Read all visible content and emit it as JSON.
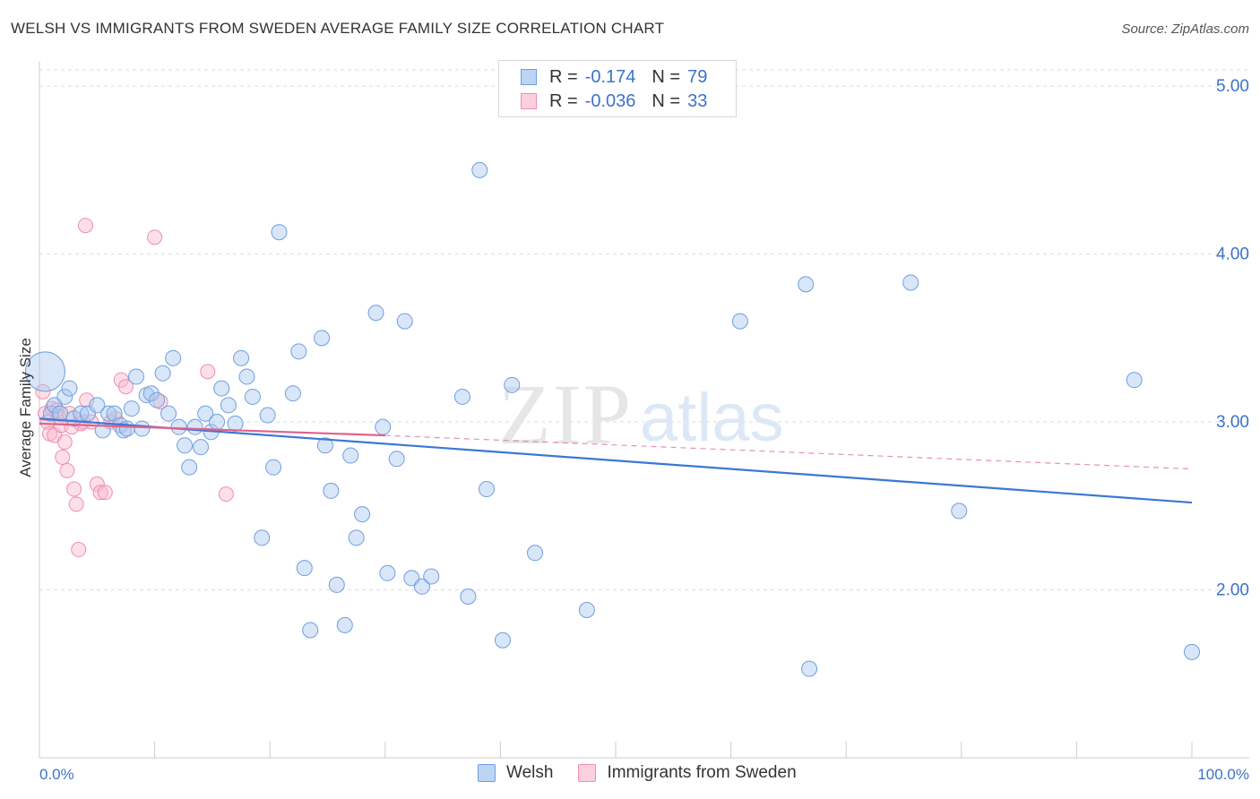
{
  "header": {
    "title": "WELSH VS IMMIGRANTS FROM SWEDEN AVERAGE FAMILY SIZE CORRELATION CHART",
    "source": "Source: ZipAtlas.com"
  },
  "watermark": {
    "zip": "ZIP",
    "atlas": "atlas"
  },
  "legend_top": {
    "welsh": {
      "r_label": "R =",
      "r_value": "-0.174",
      "n_label": "N =",
      "n_value": "79"
    },
    "sweden": {
      "r_label": "R =",
      "r_value": "-0.036",
      "n_label": "N =",
      "n_value": "33"
    }
  },
  "legend_bottom": {
    "welsh": "Welsh",
    "sweden": "Immigrants from Sweden"
  },
  "colors": {
    "welsh_fill": "#a8c8f0",
    "welsh_stroke": "#6f9ee0",
    "welsh_line": "#3a78d4",
    "sweden_fill": "#f8b8cc",
    "sweden_stroke": "#ee8fae",
    "sweden_line": "#e0608a",
    "axis_label": "#3b73c8",
    "grid": "#dddddd"
  },
  "chart_data": {
    "type": "scatter",
    "title": "WELSH VS IMMIGRANTS FROM SWEDEN AVERAGE FAMILY SIZE CORRELATION CHART",
    "xlabel": "",
    "ylabel": "Average Family Size",
    "xlim": [
      0,
      100
    ],
    "ylim": [
      1.0,
      5.15
    ],
    "x_tick_labels": [
      "0.0%",
      "100.0%"
    ],
    "y_ticks": [
      2.0,
      3.0,
      4.0,
      5.0
    ],
    "y_tick_labels": [
      "2.00",
      "3.00",
      "4.00",
      "5.00"
    ],
    "grid": true,
    "series": [
      {
        "name": "Welsh",
        "points": [
          [
            0.5,
            3.3
          ],
          [
            1.0,
            3.05
          ],
          [
            1.3,
            3.1
          ],
          [
            1.8,
            3.05
          ],
          [
            2.2,
            3.15
          ],
          [
            2.6,
            3.2
          ],
          [
            3.0,
            3.02
          ],
          [
            3.6,
            3.05
          ],
          [
            4.2,
            3.05
          ],
          [
            5.0,
            3.1
          ],
          [
            5.5,
            2.95
          ],
          [
            6.0,
            3.05
          ],
          [
            6.5,
            3.05
          ],
          [
            7.0,
            2.98
          ],
          [
            7.3,
            2.95
          ],
          [
            7.6,
            2.96
          ],
          [
            8.0,
            3.08
          ],
          [
            8.4,
            3.27
          ],
          [
            8.9,
            2.96
          ],
          [
            9.3,
            3.16
          ],
          [
            9.7,
            3.17
          ],
          [
            10.2,
            3.13
          ],
          [
            10.7,
            3.29
          ],
          [
            11.2,
            3.05
          ],
          [
            11.6,
            3.38
          ],
          [
            12.1,
            2.97
          ],
          [
            12.6,
            2.86
          ],
          [
            13.0,
            2.73
          ],
          [
            13.5,
            2.97
          ],
          [
            14.0,
            2.85
          ],
          [
            14.4,
            3.05
          ],
          [
            14.9,
            2.94
          ],
          [
            15.4,
            3.0
          ],
          [
            15.8,
            3.2
          ],
          [
            16.4,
            3.1
          ],
          [
            17.0,
            2.99
          ],
          [
            17.5,
            3.38
          ],
          [
            18.0,
            3.27
          ],
          [
            18.5,
            3.15
          ],
          [
            19.3,
            2.31
          ],
          [
            19.8,
            3.04
          ],
          [
            20.3,
            2.73
          ],
          [
            20.8,
            4.13
          ],
          [
            22.0,
            3.17
          ],
          [
            22.5,
            3.42
          ],
          [
            23.0,
            2.13
          ],
          [
            23.5,
            1.76
          ],
          [
            24.5,
            3.5
          ],
          [
            24.8,
            2.86
          ],
          [
            25.3,
            2.59
          ],
          [
            25.8,
            2.03
          ],
          [
            26.5,
            1.79
          ],
          [
            27.0,
            2.8
          ],
          [
            27.5,
            2.31
          ],
          [
            28.0,
            2.45
          ],
          [
            29.2,
            3.65
          ],
          [
            29.8,
            2.97
          ],
          [
            30.2,
            2.1
          ],
          [
            31.0,
            2.78
          ],
          [
            31.7,
            3.6
          ],
          [
            32.3,
            2.07
          ],
          [
            33.2,
            2.02
          ],
          [
            34.0,
            2.08
          ],
          [
            36.7,
            3.15
          ],
          [
            37.2,
            1.96
          ],
          [
            38.2,
            4.5
          ],
          [
            38.8,
            2.6
          ],
          [
            40.2,
            1.7
          ],
          [
            41.0,
            3.22
          ],
          [
            43.0,
            2.22
          ],
          [
            47.5,
            1.88
          ],
          [
            60.8,
            3.6
          ],
          [
            66.5,
            3.82
          ],
          [
            66.8,
            1.53
          ],
          [
            75.6,
            3.83
          ],
          [
            79.8,
            2.47
          ],
          [
            95.0,
            3.25
          ],
          [
            100.0,
            1.63
          ],
          [
            47.5,
            5.01
          ]
        ],
        "trend": {
          "x": [
            0,
            100
          ],
          "y": [
            3.02,
            2.52
          ]
        }
      },
      {
        "name": "Immigrants from Sweden",
        "points": [
          [
            0.3,
            3.18
          ],
          [
            0.5,
            3.05
          ],
          [
            0.7,
            3.0
          ],
          [
            0.9,
            2.93
          ],
          [
            1.1,
            3.08
          ],
          [
            1.3,
            2.92
          ],
          [
            1.5,
            3.07
          ],
          [
            1.7,
            3.03
          ],
          [
            1.9,
            2.98
          ],
          [
            2.0,
            2.79
          ],
          [
            2.2,
            2.88
          ],
          [
            2.4,
            2.71
          ],
          [
            2.6,
            3.05
          ],
          [
            2.8,
            2.97
          ],
          [
            3.0,
            2.6
          ],
          [
            3.2,
            2.51
          ],
          [
            3.4,
            2.24
          ],
          [
            3.6,
            2.99
          ],
          [
            3.8,
            3.0
          ],
          [
            4.1,
            3.13
          ],
          [
            4.5,
            3.0
          ],
          [
            5.0,
            2.63
          ],
          [
            5.3,
            2.58
          ],
          [
            5.7,
            2.58
          ],
          [
            6.2,
            3.0
          ],
          [
            6.6,
            3.02
          ],
          [
            4.0,
            4.17
          ],
          [
            7.1,
            3.25
          ],
          [
            7.5,
            3.21
          ],
          [
            10.0,
            4.1
          ],
          [
            10.5,
            3.12
          ],
          [
            14.6,
            3.3
          ],
          [
            16.2,
            2.57
          ]
        ],
        "trend": {
          "x": [
            0,
            30
          ],
          "y": [
            2.99,
            2.92
          ]
        },
        "trend_dashed": {
          "x": [
            30,
            100
          ],
          "y": [
            2.92,
            2.72
          ]
        }
      }
    ]
  }
}
